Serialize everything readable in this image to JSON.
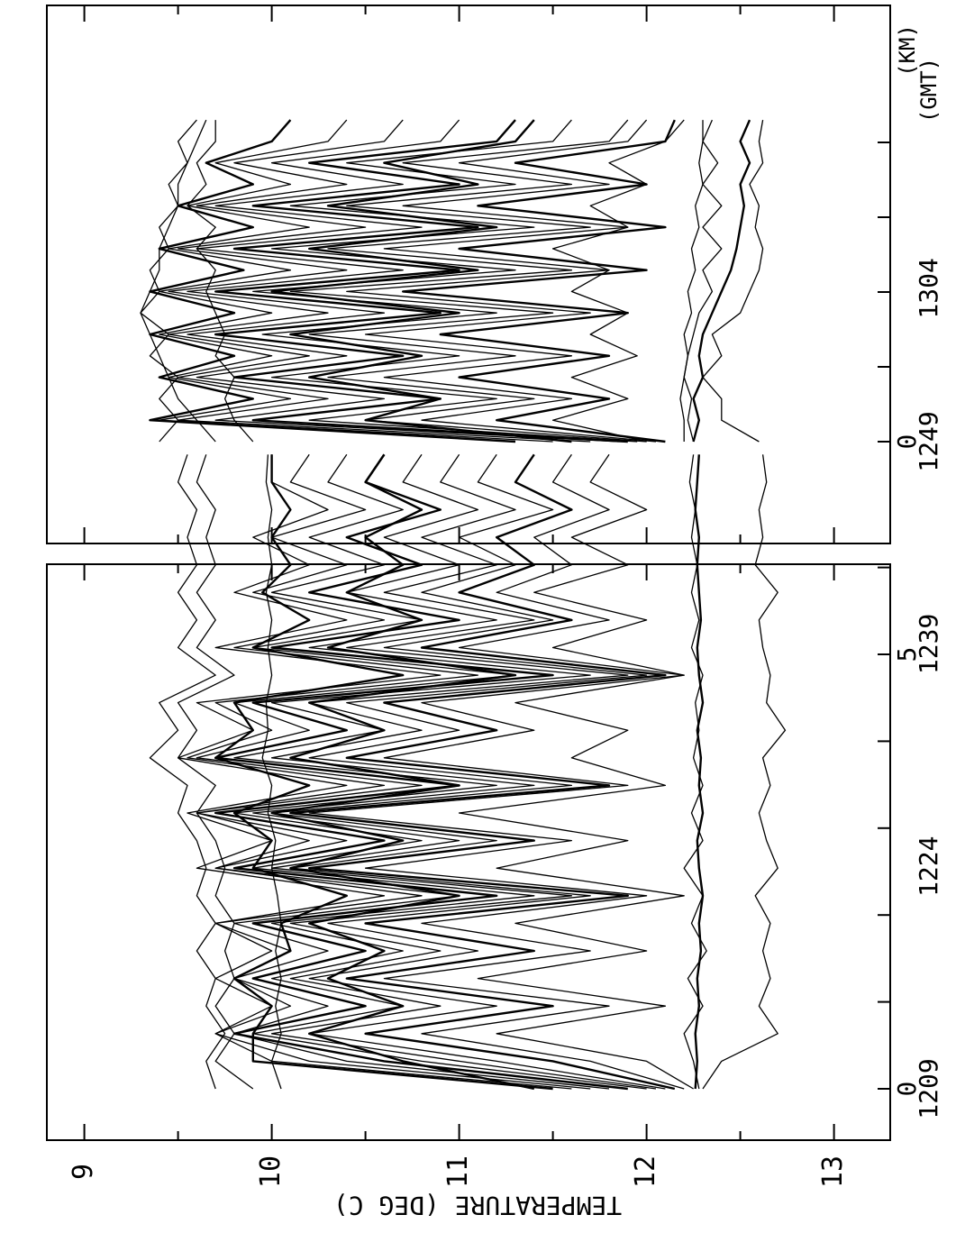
{
  "chart_data": [
    {
      "type": "line",
      "panel": "lower",
      "ylabel": "TEMPERATURE (DEG C)",
      "ylim": [
        8.8,
        13.3
      ],
      "y_ticks": [
        "9",
        "10",
        "11",
        "12",
        "13"
      ],
      "distance_axis": {
        "unit": "KM",
        "ticks": [
          0,
          5
        ],
        "tick_labels": [
          "0",
          "5"
        ],
        "range": [
          0,
          7.3
        ]
      },
      "time_axis": {
        "unit": "GMT",
        "tick_labels": [
          "1209",
          "1224",
          "1239"
        ]
      },
      "series_count": 18,
      "series": [
        {
          "values": [
            12.26,
            12.27,
            12.26,
            12.28,
            12.27,
            12.29,
            12.28,
            12.3,
            12.28,
            12.27,
            12.3,
            12.28,
            12.29,
            12.27,
            12.3,
            12.28,
            12.27,
            12.29,
            12.28,
            12.27,
            12.28,
            12.26,
            12.27,
            12.28
          ]
        },
        {
          "values": [
            12.3,
            12.4,
            12.7,
            12.6,
            12.66,
            12.62,
            12.66,
            12.58,
            12.7,
            12.64,
            12.6,
            12.66,
            12.62,
            12.74,
            12.64,
            12.66,
            12.62,
            12.6,
            12.7,
            12.58,
            12.62,
            12.6,
            12.64,
            12.62
          ]
        },
        {
          "values": [
            12.25,
            12.0,
            11.2,
            12.1,
            11.1,
            12.0,
            11.3,
            12.2,
            11.2,
            11.9,
            11.0,
            12.1,
            11.6,
            11.9,
            11.3,
            12.2,
            11.5,
            12.0,
            11.4,
            11.9,
            11.6,
            12.0,
            11.7,
            11.8
          ]
        },
        {
          "values": [
            12.2,
            11.7,
            10.8,
            11.8,
            10.6,
            11.7,
            10.8,
            12.0,
            10.5,
            11.6,
            10.2,
            11.9,
            10.6,
            11.4,
            10.8,
            12.2,
            11.0,
            11.8,
            11.2,
            11.6,
            11.4,
            11.8,
            11.5,
            11.6
          ]
        },
        {
          "values": [
            12.15,
            11.5,
            10.5,
            11.5,
            10.4,
            11.4,
            10.5,
            11.9,
            10.2,
            11.4,
            10.1,
            11.8,
            10.4,
            11.2,
            10.6,
            12.1,
            10.8,
            11.6,
            11.0,
            11.4,
            11.2,
            11.6,
            11.3,
            11.4
          ]
        },
        {
          "values": [
            12.1,
            11.2,
            10.2,
            11.2,
            10.2,
            11.1,
            10.3,
            11.7,
            10.1,
            11.2,
            10.0,
            11.6,
            10.2,
            11.0,
            10.4,
            12.0,
            10.6,
            11.5,
            10.8,
            11.3,
            11.0,
            11.5,
            11.1,
            11.2
          ]
        },
        {
          "values": [
            12.05,
            11.0,
            10.0,
            10.9,
            10.1,
            10.9,
            10.1,
            11.6,
            10.0,
            11.0,
            9.9,
            11.4,
            10.0,
            10.8,
            10.2,
            11.9,
            10.4,
            11.4,
            10.6,
            11.2,
            10.8,
            11.3,
            10.9,
            11.0
          ]
        },
        {
          "values": [
            12.0,
            10.8,
            9.9,
            10.7,
            10.0,
            10.7,
            10.0,
            11.4,
            9.9,
            10.8,
            9.8,
            11.2,
            9.8,
            10.6,
            10.0,
            11.7,
            10.2,
            11.2,
            10.4,
            11.0,
            10.6,
            11.1,
            10.7,
            10.8
          ]
        },
        {
          "values": [
            11.9,
            10.6,
            9.8,
            10.5,
            9.9,
            10.5,
            9.9,
            11.2,
            9.8,
            10.6,
            9.7,
            11.0,
            9.7,
            10.4,
            9.9,
            11.5,
            10.0,
            11.0,
            10.2,
            10.8,
            10.4,
            10.9,
            10.5,
            10.6
          ]
        },
        {
          "values": [
            11.8,
            10.4,
            9.8,
            10.3,
            9.8,
            10.3,
            9.8,
            11.0,
            9.7,
            10.4,
            9.6,
            10.8,
            9.6,
            10.2,
            9.8,
            11.3,
            9.9,
            10.8,
            10.0,
            10.6,
            10.2,
            10.7,
            10.3,
            10.4
          ]
        },
        {
          "values": [
            11.7,
            10.2,
            9.7,
            10.1,
            9.8,
            10.1,
            9.7,
            10.8,
            9.7,
            10.2,
            9.6,
            10.6,
            9.55,
            10.0,
            9.7,
            11.1,
            9.8,
            10.6,
            9.9,
            10.4,
            10.0,
            10.5,
            10.1,
            10.2
          ]
        },
        {
          "values": [
            11.6,
            10.0,
            9.7,
            10.0,
            9.7,
            10.0,
            9.7,
            10.6,
            9.6,
            10.0,
            9.55,
            10.4,
            9.5,
            9.9,
            9.6,
            10.9,
            9.7,
            10.4,
            9.8,
            10.2,
            9.9,
            10.3,
            10.0,
            10.0
          ]
        },
        {
          "values": [
            11.5,
            9.9,
            9.9,
            10.0,
            9.8,
            10.1,
            10.05,
            10.4,
            9.9,
            10.0,
            9.8,
            10.2,
            9.7,
            9.9,
            9.8,
            10.7,
            9.9,
            10.2,
            9.95,
            10.1,
            10.0,
            10.1,
            10.0,
            10.0
          ]
        },
        {
          "values": [
            10.05,
            10.0,
            10.05,
            10.02,
            10.05,
            10.02,
            10.05,
            10.03,
            10.0,
            10.02,
            9.98,
            10.0,
            9.95,
            9.98,
            9.97,
            10.0,
            9.98,
            10.0,
            9.97,
            10.0,
            9.98,
            10.0,
            9.97,
            9.98
          ]
        },
        {
          "values": [
            9.9,
            9.7,
            9.8,
            9.7,
            9.8,
            9.75,
            9.8,
            9.7,
            9.75,
            9.7,
            9.6,
            9.7,
            9.5,
            9.6,
            9.5,
            9.8,
            9.6,
            9.7,
            9.6,
            9.7,
            9.65,
            9.7,
            9.6,
            9.65
          ]
        },
        {
          "values": [
            9.7,
            9.65,
            9.75,
            9.65,
            9.7,
            9.6,
            9.7,
            9.6,
            9.65,
            9.6,
            9.5,
            9.55,
            9.35,
            9.5,
            9.4,
            9.7,
            9.5,
            9.6,
            9.5,
            9.6,
            9.55,
            9.6,
            9.5,
            9.55
          ]
        },
        {
          "values": [
            11.4,
            10.7,
            10.2,
            10.7,
            10.3,
            10.6,
            10.2,
            11.0,
            10.1,
            10.7,
            10.0,
            11.0,
            10.1,
            10.6,
            10.2,
            11.3,
            10.3,
            10.8,
            10.4,
            10.7,
            10.5,
            10.8,
            10.5,
            10.6
          ]
        },
        {
          "values": [
            12.28,
            12.25,
            12.2,
            12.3,
            12.22,
            12.32,
            12.24,
            12.3,
            12.2,
            12.3,
            12.24,
            12.3,
            12.25,
            12.28,
            12.26,
            12.3,
            12.24,
            12.28,
            12.24,
            12.27,
            12.24,
            12.26,
            12.23,
            12.25
          ]
        }
      ]
    },
    {
      "type": "line",
      "panel": "upper",
      "ylabel": "TEMPERATURE (DEG C)",
      "ylim": [
        8.8,
        13.3
      ],
      "distance_axis": {
        "unit": "KM",
        "ticks": [
          0
        ],
        "tick_labels": [
          "0"
        ],
        "range": [
          0,
          4.3
        ]
      },
      "time_axis": {
        "unit": "GMT",
        "tick_labels": [
          "1249",
          "1304"
        ]
      },
      "series_count": 18,
      "series": [
        {
          "values": [
            12.25,
            12.28,
            12.25,
            12.3,
            12.28,
            12.3,
            12.35,
            12.4,
            12.45,
            12.48,
            12.5,
            12.52,
            12.5,
            12.55,
            12.5,
            12.55
          ]
        },
        {
          "values": [
            12.6,
            12.4,
            12.4,
            12.3,
            12.4,
            12.35,
            12.5,
            12.55,
            12.6,
            12.62,
            12.58,
            12.6,
            12.55,
            12.62,
            12.6,
            12.62
          ]
        },
        {
          "values": [
            12.2,
            12.2,
            12.18,
            12.2,
            12.22,
            12.25,
            12.28,
            12.35,
            12.3,
            12.4,
            12.3,
            12.4,
            12.3,
            12.38,
            12.3,
            12.35
          ]
        },
        {
          "values": [
            12.0,
            11.5,
            11.9,
            11.6,
            11.95,
            11.7,
            11.9,
            11.6,
            11.8,
            11.5,
            11.9,
            11.7,
            12.0,
            11.8,
            12.1,
            12.2
          ]
        },
        {
          "values": [
            12.1,
            11.2,
            11.8,
            11.0,
            11.8,
            10.9,
            11.9,
            10.7,
            12.0,
            11.0,
            12.1,
            11.1,
            12.0,
            11.3,
            12.1,
            12.15
          ]
        },
        {
          "values": [
            12.05,
            10.8,
            11.6,
            10.6,
            11.6,
            10.5,
            11.7,
            10.4,
            11.8,
            10.6,
            11.9,
            10.7,
            11.8,
            11.0,
            11.9,
            12.0
          ]
        },
        {
          "values": [
            12.0,
            10.5,
            11.4,
            10.3,
            11.3,
            10.2,
            11.5,
            10.1,
            11.6,
            10.3,
            11.7,
            10.4,
            11.6,
            10.7,
            11.8,
            11.9
          ]
        },
        {
          "values": [
            11.95,
            10.2,
            11.2,
            10.0,
            11.0,
            9.95,
            11.2,
            9.9,
            11.3,
            10.0,
            11.4,
            10.1,
            11.3,
            10.4,
            11.5,
            11.6
          ]
        },
        {
          "values": [
            11.9,
            9.9,
            10.9,
            9.8,
            10.7,
            9.7,
            10.9,
            9.7,
            11.0,
            9.8,
            11.1,
            9.9,
            11.0,
            10.2,
            11.2,
            11.3
          ]
        },
        {
          "values": [
            11.85,
            9.7,
            10.6,
            9.6,
            10.4,
            9.55,
            10.6,
            9.55,
            10.7,
            9.6,
            10.8,
            9.7,
            10.7,
            10.0,
            10.9,
            11.0
          ]
        },
        {
          "values": [
            11.7,
            9.5,
            10.3,
            9.5,
            10.2,
            9.45,
            10.3,
            9.45,
            10.4,
            9.5,
            10.5,
            9.6,
            10.4,
            9.8,
            10.6,
            10.7
          ]
        },
        {
          "values": [
            11.5,
            9.4,
            10.1,
            9.45,
            10.0,
            9.4,
            10.0,
            9.4,
            10.1,
            9.45,
            10.2,
            9.55,
            10.1,
            9.7,
            10.3,
            10.4
          ]
        },
        {
          "values": [
            11.3,
            9.35,
            9.9,
            9.4,
            9.8,
            9.35,
            9.8,
            9.35,
            9.85,
            9.4,
            9.9,
            9.5,
            9.9,
            9.65,
            10.0,
            10.1
          ]
        },
        {
          "values": [
            9.9,
            9.8,
            9.75,
            9.8,
            9.7,
            9.75,
            9.7,
            9.65,
            9.7,
            9.6,
            9.7,
            9.55,
            9.65,
            9.6,
            9.7,
            9.7
          ]
        },
        {
          "values": [
            9.7,
            9.6,
            9.5,
            9.45,
            9.4,
            9.35,
            9.3,
            9.35,
            9.4,
            9.4,
            9.45,
            9.5,
            9.5,
            9.55,
            9.6,
            9.65
          ]
        },
        {
          "values": [
            9.4,
            9.5,
            9.4,
            9.5,
            9.35,
            9.45,
            9.3,
            9.4,
            9.35,
            9.45,
            9.4,
            9.5,
            9.45,
            9.55,
            9.5,
            9.6
          ]
        },
        {
          "values": [
            11.6,
            10.5,
            10.9,
            10.2,
            10.8,
            10.1,
            11.0,
            10.0,
            11.1,
            10.2,
            11.2,
            10.3,
            11.1,
            10.6,
            11.3,
            11.4
          ]
        },
        {
          "values": [
            12.25,
            12.22,
            12.24,
            12.2,
            12.22,
            12.2,
            12.24,
            12.22,
            12.26,
            12.24,
            12.28,
            12.26,
            12.3,
            12.28,
            12.3,
            12.3
          ]
        }
      ]
    }
  ]
}
